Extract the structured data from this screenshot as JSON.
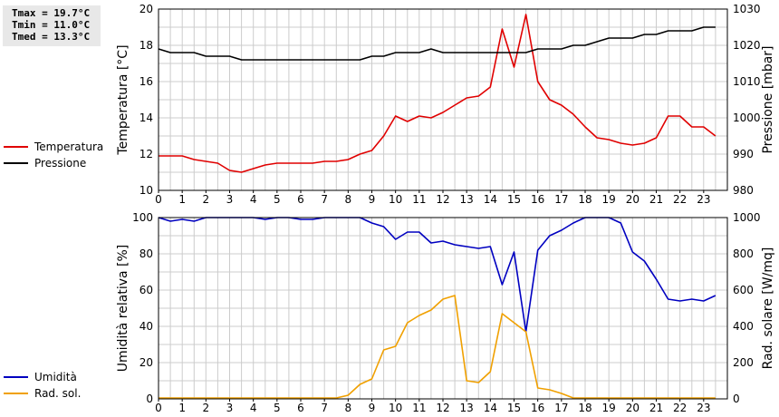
{
  "stats": {
    "tmax": "Tmax = 19.7°C",
    "tmin": "Tmin = 11.0°C",
    "tmed": "Tmed = 13.3°C"
  },
  "colors": {
    "temperature": "#e00000",
    "pressure": "#000000",
    "humidity": "#0000c0",
    "radiation": "#f0a000",
    "grid": "#cccccc"
  },
  "legend_top": [
    {
      "label": "Temperatura",
      "color": "#e00000"
    },
    {
      "label": "Pressione",
      "color": "#000000"
    }
  ],
  "legend_bottom": [
    {
      "label": "Umidità",
      "color": "#0000c0"
    },
    {
      "label": "Rad. sol.",
      "color": "#f0a000"
    }
  ],
  "chart_data": [
    {
      "type": "line",
      "ylabel": "Temperatura [°C]",
      "y2label": "Pressione [mbar]",
      "xlim": [
        0,
        24
      ],
      "xticks": [
        "0",
        "1",
        "2",
        "3",
        "4",
        "5",
        "6",
        "7",
        "8",
        "9",
        "10",
        "11",
        "12",
        "13",
        "14",
        "15",
        "16",
        "17",
        "18",
        "19",
        "20",
        "21",
        "22",
        "23"
      ],
      "ylim": [
        10,
        20
      ],
      "yticks": [
        "10",
        "12",
        "14",
        "16",
        "18",
        "20"
      ],
      "y2lim": [
        980,
        1030
      ],
      "y2ticks": [
        "980",
        "990",
        "1000",
        "1010",
        "1020",
        "1030"
      ],
      "grid": true,
      "legend": "left",
      "series": [
        {
          "name": "Temperatura",
          "axis": "left",
          "color": "#e00000",
          "x": [
            0,
            0.5,
            1,
            1.5,
            2,
            2.5,
            3,
            3.5,
            4,
            4.5,
            5,
            5.5,
            6,
            6.5,
            7,
            7.5,
            8,
            8.5,
            9,
            9.5,
            10,
            10.5,
            11,
            11.5,
            12,
            12.5,
            13,
            13.5,
            14,
            14.5,
            15,
            15.5,
            16,
            16.5,
            17,
            17.5,
            18,
            18.5,
            19,
            19.5,
            20,
            20.5,
            21,
            21.5,
            22,
            22.5,
            23,
            23.5
          ],
          "y": [
            11.9,
            11.9,
            11.9,
            11.7,
            11.6,
            11.5,
            11.1,
            11.0,
            11.2,
            11.4,
            11.5,
            11.5,
            11.5,
            11.5,
            11.6,
            11.6,
            11.7,
            12.0,
            12.2,
            13.0,
            14.1,
            13.8,
            14.1,
            14.0,
            14.3,
            14.7,
            15.1,
            15.2,
            15.7,
            18.9,
            16.8,
            19.7,
            16.0,
            15.0,
            14.7,
            14.2,
            13.5,
            12.9,
            12.8,
            12.6,
            12.5,
            12.6,
            12.9,
            14.1,
            14.1,
            13.5,
            13.5,
            13.0
          ]
        },
        {
          "name": "Pressione",
          "axis": "right",
          "color": "#000000",
          "x": [
            0,
            0.5,
            1,
            1.5,
            2,
            2.5,
            3,
            3.5,
            4,
            4.5,
            5,
            5.5,
            6,
            6.5,
            7,
            7.5,
            8,
            8.5,
            9,
            9.5,
            10,
            10.5,
            11,
            11.5,
            12,
            12.5,
            13,
            13.5,
            14,
            14.5,
            15,
            15.5,
            16,
            16.5,
            17,
            17.5,
            18,
            18.5,
            19,
            19.5,
            20,
            20.5,
            21,
            21.5,
            22,
            22.5,
            23,
            23.5
          ],
          "y": [
            1019,
            1018,
            1018,
            1018,
            1017,
            1017,
            1017,
            1016,
            1016,
            1016,
            1016,
            1016,
            1016,
            1016,
            1016,
            1016,
            1016,
            1016,
            1017,
            1017,
            1018,
            1018,
            1018,
            1019,
            1018,
            1018,
            1018,
            1018,
            1018,
            1018,
            1018,
            1018,
            1019,
            1019,
            1019,
            1020,
            1020,
            1021,
            1022,
            1022,
            1022,
            1023,
            1023,
            1024,
            1024,
            1024,
            1025,
            1025
          ]
        }
      ]
    },
    {
      "type": "line",
      "ylabel": "Umidità relativa [%]",
      "y2label": "Rad. solare [W/mq]",
      "xlim": [
        0,
        24
      ],
      "xticks": [
        "0",
        "1",
        "2",
        "3",
        "4",
        "5",
        "6",
        "7",
        "8",
        "9",
        "10",
        "11",
        "12",
        "13",
        "14",
        "15",
        "16",
        "17",
        "18",
        "19",
        "20",
        "21",
        "22",
        "23"
      ],
      "ylim": [
        0,
        100
      ],
      "yticks": [
        "0",
        "20",
        "40",
        "60",
        "80",
        "100"
      ],
      "y2lim": [
        0,
        1000
      ],
      "y2ticks": [
        "0",
        "200",
        "400",
        "600",
        "800",
        "1000"
      ],
      "grid": true,
      "legend": "left",
      "series": [
        {
          "name": "Umidità",
          "axis": "left",
          "color": "#0000c0",
          "x": [
            0,
            0.5,
            1,
            1.5,
            2,
            2.5,
            3,
            3.5,
            4,
            4.5,
            5,
            5.5,
            6,
            6.5,
            7,
            7.5,
            8,
            8.5,
            9,
            9.5,
            10,
            10.5,
            11,
            11.5,
            12,
            12.5,
            13,
            13.5,
            14,
            14.5,
            15,
            15.5,
            16,
            16.5,
            17,
            17.5,
            18,
            18.5,
            19,
            19.5,
            20,
            20.5,
            21,
            21.5,
            22,
            22.5,
            23,
            23.5
          ],
          "y": [
            100,
            98,
            99,
            98,
            100,
            100,
            100,
            100,
            100,
            99,
            100,
            100,
            99,
            99,
            100,
            100,
            100,
            100,
            97,
            95,
            88,
            92,
            92,
            86,
            87,
            85,
            84,
            83,
            84,
            63,
            81,
            37,
            82,
            90,
            93,
            97,
            100,
            100,
            100,
            97,
            81,
            76,
            66,
            55,
            54,
            55,
            54,
            57
          ]
        },
        {
          "name": "Rad. sol.",
          "axis": "right",
          "color": "#f0a000",
          "x": [
            0,
            0.5,
            1,
            1.5,
            2,
            2.5,
            3,
            3.5,
            4,
            4.5,
            5,
            5.5,
            6,
            6.5,
            7,
            7.5,
            8,
            8.5,
            9,
            9.5,
            10,
            10.5,
            11,
            11.5,
            12,
            12.5,
            13,
            13.5,
            14,
            14.5,
            15,
            15.5,
            16,
            16.5,
            17,
            17.5,
            18,
            18.5,
            19,
            19.5,
            20,
            20.5,
            21,
            21.5,
            22,
            22.5,
            23,
            23.5
          ],
          "y": [
            5,
            5,
            5,
            5,
            5,
            5,
            5,
            5,
            5,
            5,
            5,
            5,
            5,
            5,
            5,
            5,
            20,
            80,
            110,
            270,
            290,
            420,
            460,
            490,
            550,
            570,
            100,
            90,
            150,
            470,
            420,
            370,
            60,
            50,
            30,
            5,
            5,
            5,
            5,
            5,
            5,
            5,
            5,
            5,
            5,
            5,
            5,
            5
          ]
        }
      ]
    }
  ]
}
